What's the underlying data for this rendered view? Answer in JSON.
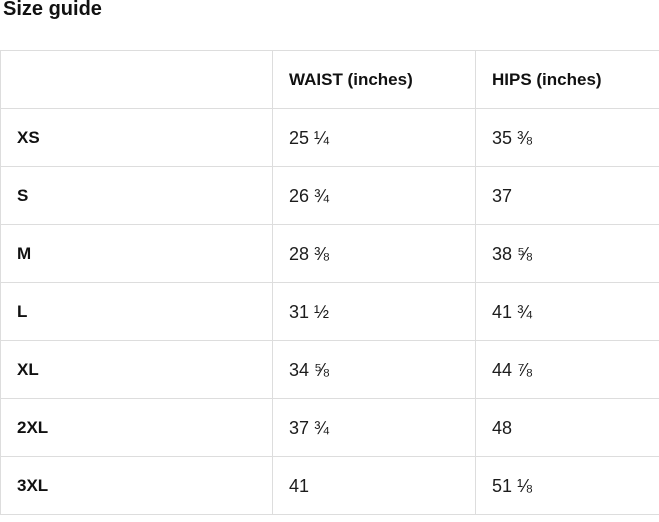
{
  "title": "Size guide",
  "table": {
    "headers": [
      "",
      "WAIST (inches)",
      "HIPS (inches)"
    ],
    "rows": [
      {
        "size": "XS",
        "waist": "25 ¼",
        "hips": "35 ⅜"
      },
      {
        "size": "S",
        "waist": "26 ¾",
        "hips": "37"
      },
      {
        "size": "M",
        "waist": "28 ⅜",
        "hips": "38 ⅝"
      },
      {
        "size": "L",
        "waist": "31 ½",
        "hips": "41 ¾"
      },
      {
        "size": "XL",
        "waist": "34 ⅝",
        "hips": "44 ⅞"
      },
      {
        "size": "2XL",
        "waist": "37 ¾",
        "hips": "48"
      },
      {
        "size": "3XL",
        "waist": "41",
        "hips": "51 ⅛"
      }
    ]
  },
  "colors": {
    "border": "#dddddd",
    "text": "#111111",
    "background": "#ffffff"
  }
}
